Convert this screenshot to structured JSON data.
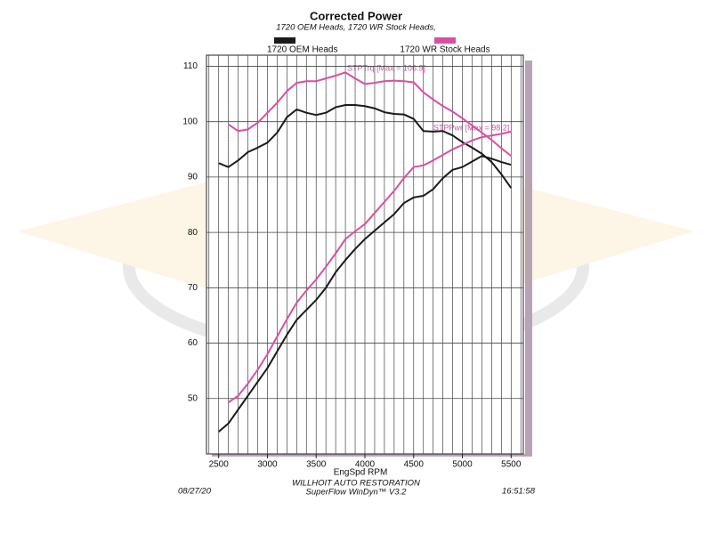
{
  "chart_data": {
    "type": "line",
    "title": "Corrected Power",
    "subtitle": "1720 OEM Heads, 1720 WR Stock Heads,",
    "xlabel": "EngSpd RPM",
    "annotations": [
      "STPTrq [Max = 106.9]",
      "STPPwr [Max = 98.2]"
    ],
    "footer": {
      "company": "WILLHOIT AUTO RESTORATION",
      "software": "SuperFlow WinDyn™ V3.2",
      "date": "08/27/20",
      "time": "16:51:58"
    },
    "xlim": [
      2375,
      5625
    ],
    "ylim": [
      40,
      112
    ],
    "xticks": [
      2500,
      3000,
      3500,
      4000,
      4500,
      5000,
      5500
    ],
    "yticks": [
      50,
      60,
      70,
      80,
      90,
      100,
      110
    ],
    "x_minor_step": 100,
    "grid": true,
    "x": [
      2500,
      2600,
      2700,
      2800,
      2900,
      3000,
      3100,
      3200,
      3300,
      3400,
      3500,
      3600,
      3700,
      3800,
      3900,
      4000,
      4100,
      4200,
      4300,
      4400,
      4500,
      4600,
      4700,
      4800,
      4900,
      5000,
      5100,
      5200,
      5300,
      5400,
      5500
    ],
    "series": [
      {
        "name": "1720 OEM Heads",
        "color": "#1a1a1a",
        "torque": [
          92.5,
          91.8,
          93,
          94.5,
          95.3,
          96.2,
          98,
          100.8,
          102.2,
          101.6,
          101.2,
          101.6,
          102.6,
          103,
          103,
          102.8,
          102.4,
          101.7,
          101.4,
          101.3,
          100.5,
          98.3,
          98.2,
          98.3,
          97.5,
          96.3,
          95.3,
          94.2,
          92.7,
          90.5,
          88
        ],
        "power": [
          44,
          45.5,
          48,
          50.5,
          53,
          55.5,
          58.5,
          61.5,
          64.2,
          66,
          67.8,
          70,
          72.8,
          75,
          77,
          78.8,
          80.3,
          81.8,
          83.3,
          85.3,
          86.3,
          86.6,
          87.8,
          89.8,
          91.3,
          91.8,
          92.8,
          93.8,
          93.3,
          92.7,
          92.2
        ]
      },
      {
        "name": "1720 WR Stock Heads",
        "color": "#d94fa3",
        "torque": [
          null,
          99.5,
          98.3,
          98.6,
          99.8,
          101.6,
          103.4,
          105.5,
          107,
          107.3,
          107.3,
          107.8,
          108.3,
          108.9,
          107.8,
          106.8,
          107,
          107.3,
          107.4,
          107.3,
          107.1,
          105.3,
          104,
          102.8,
          101.8,
          100.6,
          99.3,
          98,
          96.7,
          95.2,
          93.8
        ],
        "power": [
          null,
          49.3,
          50.5,
          52.7,
          55.2,
          58,
          61.2,
          64.3,
          67.3,
          69.5,
          71.5,
          73.8,
          76.2,
          78.8,
          80.2,
          81.5,
          83.5,
          85.5,
          87.5,
          89.8,
          91.8,
          92.1,
          93,
          94,
          95,
          95.8,
          96.6,
          97.2,
          97.5,
          97.8,
          98.2
        ]
      }
    ]
  }
}
